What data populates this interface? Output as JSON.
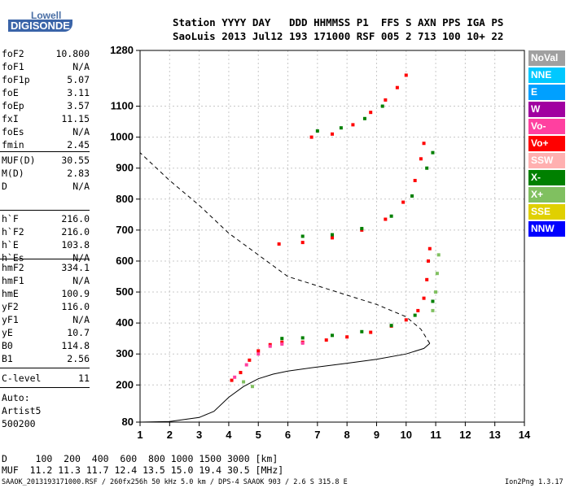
{
  "logo": {
    "line1": "Lowell",
    "line2": "DIGISONDE"
  },
  "header": {
    "row1": "Station YYYY DAY   DDD HHMMSS P1  FFS S AXN PPS IGA PS",
    "row2": "SaoLuis 2013 Jul12 193 171000 RSF 005 2 713 100 10+ 22"
  },
  "params_group1": [
    {
      "key": "foF2",
      "value": "10.800"
    },
    {
      "key": "foF1",
      "value": "N/A"
    },
    {
      "key": "foF1p",
      "value": "5.07"
    },
    {
      "key": "foE",
      "value": "3.11"
    },
    {
      "key": "foEp",
      "value": "3.57"
    },
    {
      "key": "fxI",
      "value": "11.15"
    },
    {
      "key": "foEs",
      "value": "N/A"
    },
    {
      "key": "fmin",
      "value": "2.45"
    }
  ],
  "params_group2": [
    {
      "key": "MUF(D)",
      "value": "30.55"
    },
    {
      "key": "M(D)",
      "value": "2.83"
    },
    {
      "key": "D",
      "value": "N/A"
    }
  ],
  "params_group3": [
    {
      "key": "h`F",
      "value": "216.0"
    },
    {
      "key": "h`F2",
      "value": "216.0"
    },
    {
      "key": "h`E",
      "value": "103.8"
    },
    {
      "key": "h`Es",
      "value": "N/A"
    }
  ],
  "params_group4": [
    {
      "key": "hmF2",
      "value": "334.1"
    },
    {
      "key": "hmF1",
      "value": "N/A"
    },
    {
      "key": "hmE",
      "value": "100.9"
    },
    {
      "key": "yF2",
      "value": "116.0"
    },
    {
      "key": "yF1",
      "value": "N/A"
    },
    {
      "key": "yE",
      "value": "10.7"
    },
    {
      "key": "B0",
      "value": "114.8"
    },
    {
      "key": "B1",
      "value": "2.56"
    }
  ],
  "params_group5": [
    {
      "key": "C-level",
      "value": "11"
    }
  ],
  "autoscale": {
    "line1": "Auto:",
    "line2": "Artist5",
    "line3": "500200"
  },
  "legend": [
    {
      "label": "NoVal",
      "color": "#a0a0a0"
    },
    {
      "label": "NNE",
      "color": "#00c8ff"
    },
    {
      "label": "E",
      "color": "#00a0ff"
    },
    {
      "label": "W",
      "color": "#a000a0"
    },
    {
      "label": "Vo-",
      "color": "#ff40a0"
    },
    {
      "label": "Vo+",
      "color": "#ff0000"
    },
    {
      "label": "SSW",
      "color": "#ffb0b0"
    },
    {
      "label": "X-",
      "color": "#008000"
    },
    {
      "label": "X+",
      "color": "#80c060"
    },
    {
      "label": "SSE",
      "color": "#e0d000"
    },
    {
      "label": "NNW",
      "color": "#0000ff"
    }
  ],
  "bottom": {
    "d_row": "D     100  200  400  600  800 1000 1500 3000 [km]",
    "muf_row": "MUF  11.2 11.3 11.7 12.4 13.5 15.0 19.4 30.5 [MHz]"
  },
  "footer": {
    "left": "SAAOK_2013193171000.RSF / 260fx256h 50 kHz 5.0 km / DPS-4 SAAOK 903 / 2.6 S 315.8 E",
    "right": "Ion2Png 1.3.17"
  },
  "chart_data": {
    "type": "scatter",
    "title": "",
    "xlabel": "",
    "ylabel": "",
    "xlim": [
      1,
      14
    ],
    "ylim": [
      80,
      1280
    ],
    "x_ticks": [
      1,
      2,
      3,
      4,
      5,
      6,
      7,
      8,
      9,
      10,
      11,
      12,
      13,
      14
    ],
    "y_ticks": [
      80,
      200,
      300,
      400,
      500,
      600,
      700,
      800,
      900,
      1000,
      1100,
      1280
    ],
    "grid": true,
    "series": [
      {
        "name": "Vo+",
        "color": "#ff0000",
        "points": [
          [
            4.1,
            215
          ],
          [
            4.4,
            240
          ],
          [
            4.7,
            280
          ],
          [
            5.0,
            310
          ],
          [
            5.4,
            330
          ],
          [
            5.8,
            338
          ],
          [
            6.5,
            338
          ],
          [
            7.3,
            345
          ],
          [
            8.0,
            355
          ],
          [
            8.8,
            370
          ],
          [
            9.5,
            390
          ],
          [
            10.0,
            410
          ],
          [
            10.4,
            440
          ],
          [
            10.6,
            480
          ],
          [
            10.7,
            540
          ],
          [
            10.75,
            600
          ],
          [
            10.8,
            640
          ]
        ]
      },
      {
        "name": "Vo-",
        "color": "#ff40a0",
        "points": [
          [
            4.2,
            225
          ],
          [
            4.6,
            265
          ],
          [
            5.0,
            300
          ],
          [
            5.4,
            325
          ],
          [
            5.8,
            332
          ],
          [
            6.5,
            335
          ]
        ]
      },
      {
        "name": "X-",
        "color": "#008000",
        "points": [
          [
            5.8,
            350
          ],
          [
            6.5,
            352
          ],
          [
            7.5,
            360
          ],
          [
            8.5,
            372
          ],
          [
            9.5,
            392
          ],
          [
            10.3,
            425
          ],
          [
            10.9,
            470
          ]
        ]
      },
      {
        "name": "X+",
        "color": "#80c060",
        "points": [
          [
            10.9,
            440
          ],
          [
            11.0,
            500
          ],
          [
            11.05,
            560
          ],
          [
            11.1,
            620
          ],
          [
            4.5,
            210
          ],
          [
            4.8,
            195
          ]
        ]
      },
      {
        "name": "Vo+",
        "color": "#ff0000",
        "points": [
          [
            5.7,
            655
          ],
          [
            6.5,
            660
          ],
          [
            7.5,
            675
          ],
          [
            8.5,
            700
          ],
          [
            9.3,
            735
          ],
          [
            9.9,
            790
          ],
          [
            10.3,
            860
          ],
          [
            10.5,
            930
          ],
          [
            10.6,
            980
          ]
        ]
      },
      {
        "name": "X-",
        "color": "#008000",
        "points": [
          [
            6.5,
            680
          ],
          [
            7.5,
            685
          ],
          [
            8.5,
            705
          ],
          [
            9.5,
            745
          ],
          [
            10.2,
            810
          ],
          [
            10.7,
            900
          ],
          [
            10.9,
            950
          ]
        ]
      },
      {
        "name": "Vo+",
        "color": "#ff0000",
        "points": [
          [
            6.8,
            1000
          ],
          [
            7.5,
            1010
          ],
          [
            8.2,
            1040
          ],
          [
            8.8,
            1080
          ],
          [
            9.3,
            1120
          ],
          [
            9.7,
            1160
          ],
          [
            10.0,
            1200
          ]
        ]
      },
      {
        "name": "X-",
        "color": "#008000",
        "points": [
          [
            7.0,
            1020
          ],
          [
            7.8,
            1030
          ],
          [
            8.6,
            1060
          ],
          [
            9.2,
            1100
          ]
        ]
      }
    ],
    "lines": [
      {
        "name": "profile",
        "style": "solid",
        "points": [
          [
            1,
            80
          ],
          [
            2,
            82
          ],
          [
            3,
            95
          ],
          [
            3.5,
            115
          ],
          [
            4,
            160
          ],
          [
            4.5,
            195
          ],
          [
            5,
            220
          ],
          [
            5.5,
            235
          ],
          [
            6,
            245
          ],
          [
            7,
            258
          ],
          [
            8,
            270
          ],
          [
            9,
            283
          ],
          [
            10,
            300
          ],
          [
            10.6,
            318
          ],
          [
            10.8,
            334
          ]
        ]
      },
      {
        "name": "topside",
        "style": "dashed",
        "points": [
          [
            10.8,
            334
          ],
          [
            10.5,
            380
          ],
          [
            10,
            420
          ],
          [
            9,
            460
          ],
          [
            8,
            490
          ],
          [
            7,
            520
          ],
          [
            6,
            550
          ],
          [
            5,
            620
          ],
          [
            4,
            690
          ],
          [
            3,
            780
          ],
          [
            2,
            860
          ],
          [
            1,
            950
          ]
        ]
      }
    ]
  }
}
